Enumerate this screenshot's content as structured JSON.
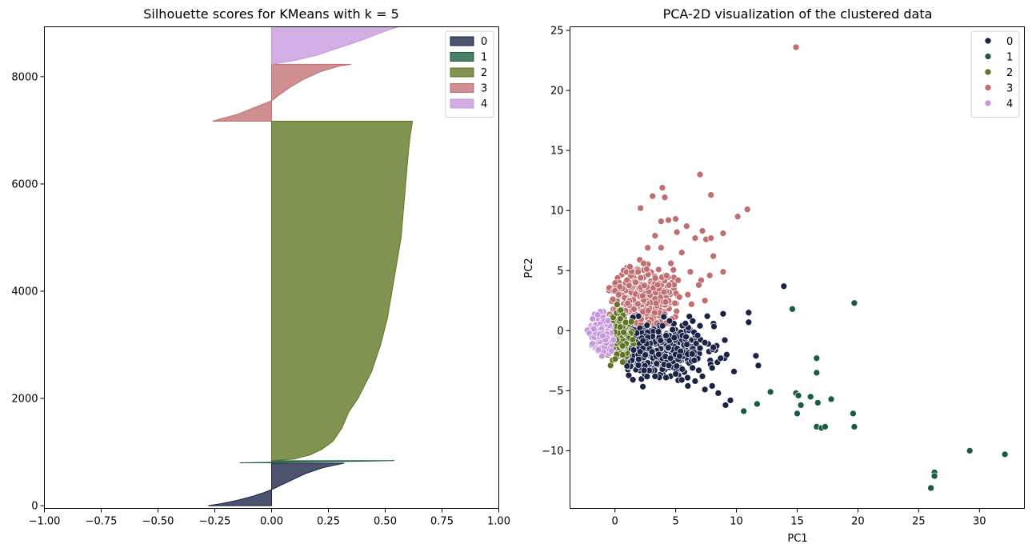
{
  "chart_data": [
    {
      "type": "area",
      "title": "Silhouette scores for KMeans with k = 5",
      "xlabel": "",
      "ylabel": "",
      "xlim": [
        -1.0,
        1.0
      ],
      "ylim": [
        -50,
        8930
      ],
      "xticks": [
        "−1.00",
        "−0.75",
        "−0.50",
        "−0.25",
        "0.00",
        "0.25",
        "0.50",
        "0.75",
        "1.00"
      ],
      "yticks": [
        "0",
        "2000",
        "4000",
        "6000",
        "8000"
      ],
      "legend": "top-right",
      "grid": false,
      "series": [
        {
          "name": "0",
          "color": "#1a2346",
          "y_range": [
            0,
            800
          ],
          "profile": [
            [
              0,
              -0.28
            ],
            [
              40,
              -0.22
            ],
            [
              100,
              -0.15
            ],
            [
              180,
              -0.08
            ],
            [
              250,
              -0.03
            ],
            [
              300,
              0.0
            ],
            [
              400,
              0.05
            ],
            [
              500,
              0.1
            ],
            [
              600,
              0.15
            ],
            [
              700,
              0.22
            ],
            [
              760,
              0.28
            ],
            [
              795,
              0.32
            ]
          ]
        },
        {
          "name": "1",
          "color": "#185c3c",
          "y_range": [
            800,
            840
          ],
          "profile": [
            [
              800,
              -0.14
            ],
            [
              815,
              0.1
            ],
            [
              830,
              0.4
            ],
            [
              840,
              0.54
            ]
          ]
        },
        {
          "name": "2",
          "color": "#5e7420",
          "y_range": [
            840,
            7170
          ],
          "profile": [
            [
              840,
              0.0
            ],
            [
              870,
              0.1
            ],
            [
              950,
              0.17
            ],
            [
              1050,
              0.22
            ],
            [
              1200,
              0.27
            ],
            [
              1450,
              0.31
            ],
            [
              1750,
              0.34
            ],
            [
              2000,
              0.38
            ],
            [
              2500,
              0.44
            ],
            [
              3000,
              0.48
            ],
            [
              3500,
              0.51
            ],
            [
              4000,
              0.53
            ],
            [
              4500,
              0.55
            ],
            [
              5000,
              0.57
            ],
            [
              5500,
              0.58
            ],
            [
              6000,
              0.59
            ],
            [
              6500,
              0.6
            ],
            [
              6900,
              0.61
            ],
            [
              7170,
              0.62
            ]
          ]
        },
        {
          "name": "3",
          "color": "#c16e70",
          "y_range": [
            7170,
            8230
          ],
          "profile": [
            [
              7170,
              -0.26
            ],
            [
              7300,
              -0.15
            ],
            [
              7450,
              -0.06
            ],
            [
              7550,
              0.0
            ],
            [
              7650,
              0.03
            ],
            [
              7800,
              0.08
            ],
            [
              7950,
              0.14
            ],
            [
              8100,
              0.22
            ],
            [
              8200,
              0.3
            ],
            [
              8230,
              0.35
            ]
          ]
        },
        {
          "name": "4",
          "color": "#c697dc",
          "y_range": [
            8230,
            8930
          ],
          "profile": [
            [
              8230,
              0.0
            ],
            [
              8300,
              0.1
            ],
            [
              8400,
              0.2
            ],
            [
              8500,
              0.27
            ],
            [
              8600,
              0.34
            ],
            [
              8700,
              0.41
            ],
            [
              8800,
              0.47
            ],
            [
              8880,
              0.52
            ],
            [
              8930,
              0.56
            ]
          ]
        }
      ]
    },
    {
      "type": "scatter",
      "title": "PCA-2D visualization of the clustered data",
      "xlabel": "PC1",
      "ylabel": "PC2",
      "xlim": [
        -3.7,
        33.7
      ],
      "ylim": [
        -14.8,
        25.3
      ],
      "xticks": [
        "0",
        "5",
        "10",
        "15",
        "20",
        "25",
        "30"
      ],
      "yticks": [
        "−10",
        "−5",
        "0",
        "5",
        "10",
        "15",
        "20",
        "25"
      ],
      "legend": "top-right",
      "grid": false,
      "series": [
        {
          "name": "0",
          "color": "#1a2346",
          "points": [
            [
              13.9,
              3.7
            ],
            [
              11.0,
              1.5
            ],
            [
              11.0,
              0.7
            ],
            [
              8.9,
              1.4
            ],
            [
              11.6,
              -2.1
            ],
            [
              11.8,
              -2.9
            ],
            [
              9.8,
              -3.4
            ],
            [
              9.5,
              -5.8
            ],
            [
              9.1,
              -6.2
            ],
            [
              8.5,
              -5.2
            ],
            [
              8.0,
              -4.6
            ],
            [
              7.4,
              -4.9
            ],
            [
              7.2,
              -3.8
            ],
            [
              6.6,
              -4.2
            ],
            [
              6.0,
              -4.6
            ],
            [
              5.5,
              -4.1
            ],
            [
              8.1,
              -1.4
            ],
            [
              8.7,
              -2.3
            ],
            [
              9.2,
              -2.0
            ],
            [
              7.4,
              -1.0
            ],
            [
              6.8,
              -0.4
            ],
            [
              7.6,
              1.2
            ],
            [
              7.0,
              0.4
            ],
            [
              6.4,
              0.8
            ],
            [
              5.8,
              0.6
            ],
            [
              8.0,
              -3.1
            ],
            [
              6.9,
              -3.3
            ],
            [
              5.0,
              -3.6
            ],
            [
              4.2,
              -3.9
            ],
            [
              3.3,
              -3.8
            ],
            [
              2.4,
              -3.3
            ]
          ],
          "cloud": {
            "cx": 3.6,
            "cy": -1.5,
            "rx": 2.6,
            "ry": 1.4,
            "n": 480,
            "seed": 11
          }
        },
        {
          "name": "1",
          "color": "#185c3c",
          "points": [
            [
              14.6,
              1.8
            ],
            [
              19.7,
              2.3
            ],
            [
              16.6,
              -2.3
            ],
            [
              16.6,
              -3.5
            ],
            [
              14.9,
              -5.2
            ],
            [
              15.1,
              -5.4
            ],
            [
              15.3,
              -6.2
            ],
            [
              15.0,
              -6.9
            ],
            [
              16.1,
              -5.5
            ],
            [
              16.7,
              -6.0
            ],
            [
              17.8,
              -5.7
            ],
            [
              19.6,
              -6.9
            ],
            [
              12.8,
              -5.1
            ],
            [
              11.7,
              -6.1
            ],
            [
              10.6,
              -6.7
            ],
            [
              16.6,
              -8.0
            ],
            [
              17.0,
              -8.1
            ],
            [
              17.3,
              -8.0
            ],
            [
              19.7,
              -8.0
            ],
            [
              29.2,
              -10.0
            ],
            [
              32.1,
              -10.3
            ],
            [
              26.3,
              -11.8
            ],
            [
              26.3,
              -12.1
            ],
            [
              26.0,
              -13.1
            ]
          ]
        },
        {
          "name": "2",
          "color": "#5e7420",
          "points": [],
          "cloud": {
            "cx": 0.2,
            "cy": -0.6,
            "rx": 0.7,
            "ry": 1.2,
            "n": 140,
            "seed": 23
          }
        },
        {
          "name": "3",
          "color": "#c16e70",
          "points": [
            [
              14.9,
              23.6
            ],
            [
              7.0,
              13.0
            ],
            [
              7.9,
              11.3
            ],
            [
              3.9,
              11.9
            ],
            [
              3.1,
              11.2
            ],
            [
              4.1,
              11.1
            ],
            [
              10.9,
              10.1
            ],
            [
              2.1,
              10.2
            ],
            [
              10.1,
              9.5
            ],
            [
              3.8,
              9.1
            ],
            [
              4.4,
              9.2
            ],
            [
              5.0,
              9.3
            ],
            [
              5.9,
              8.7
            ],
            [
              6.6,
              7.7
            ],
            [
              7.2,
              8.3
            ],
            [
              8.9,
              8.1
            ],
            [
              5.1,
              8.2
            ],
            [
              7.5,
              7.6
            ],
            [
              7.9,
              7.7
            ],
            [
              5.5,
              6.5
            ],
            [
              8.1,
              6.2
            ],
            [
              7.1,
              4.2
            ],
            [
              8.9,
              4.9
            ],
            [
              7.8,
              4.6
            ],
            [
              6.9,
              3.8
            ],
            [
              6.0,
              3.0
            ],
            [
              7.4,
              2.5
            ],
            [
              6.3,
              2.2
            ],
            [
              5.3,
              2.8
            ],
            [
              5.2,
              4.2
            ],
            [
              4.6,
              5.6
            ],
            [
              3.8,
              6.9
            ],
            [
              2.7,
              6.9
            ],
            [
              3.3,
              7.9
            ],
            [
              6.2,
              4.9
            ]
          ],
          "cloud": {
            "cx": 2.3,
            "cy": 2.8,
            "rx": 1.6,
            "ry": 1.7,
            "n": 360,
            "seed": 37
          }
        },
        {
          "name": "4",
          "color": "#c697dc",
          "points": [],
          "cloud": {
            "cx": -1.2,
            "cy": -0.2,
            "rx": 0.6,
            "ry": 1.1,
            "n": 170,
            "seed": 51
          }
        }
      ]
    }
  ]
}
